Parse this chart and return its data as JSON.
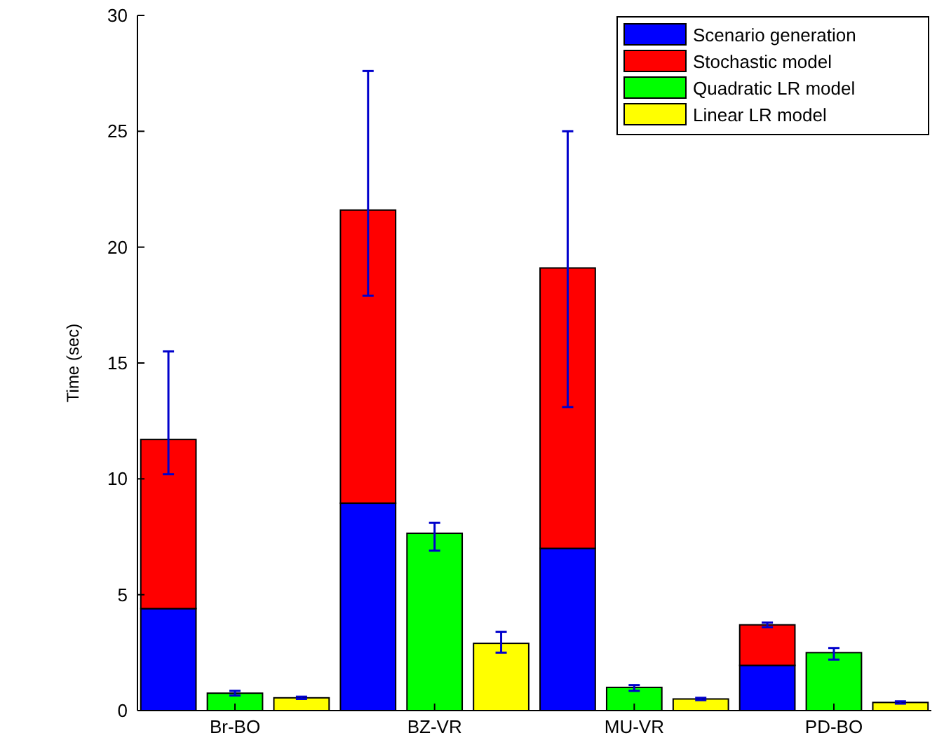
{
  "chart_data": {
    "type": "bar",
    "stacked": true,
    "ylabel": "Time (sec)",
    "categories": [
      null,
      "Br-BO",
      null,
      null,
      "BZ-VR",
      null,
      null,
      "MU-VR",
      null,
      null,
      "PD-BO",
      null
    ],
    "series": [
      {
        "name": "Scenario generation",
        "color": "#0000ff",
        "values": [
          4.4,
          null,
          null,
          8.95,
          null,
          null,
          7.0,
          null,
          null,
          1.95,
          null,
          null
        ]
      },
      {
        "name": "Stochastic model",
        "color": "#ff0000",
        "values": [
          7.3,
          null,
          null,
          12.65,
          null,
          null,
          12.1,
          null,
          null,
          1.75,
          null,
          null
        ],
        "errors": [
          [
            10.2,
            15.5
          ],
          null,
          null,
          [
            17.9,
            27.6
          ],
          null,
          null,
          [
            13.1,
            25.0
          ],
          null,
          null,
          [
            3.6,
            3.8
          ],
          null,
          null
        ]
      },
      {
        "name": "Quadratic LR model",
        "color": "#00ff00",
        "values": [
          null,
          0.75,
          null,
          null,
          7.65,
          null,
          null,
          1.0,
          null,
          null,
          2.5,
          null
        ],
        "errors": [
          null,
          [
            0.65,
            0.85
          ],
          null,
          null,
          [
            6.9,
            8.1
          ],
          null,
          null,
          [
            0.85,
            1.1
          ],
          null,
          null,
          [
            2.2,
            2.7
          ],
          null
        ]
      },
      {
        "name": "Linear LR model",
        "color": "#ffff00",
        "values": [
          null,
          null,
          0.55,
          null,
          null,
          2.9,
          null,
          null,
          0.5,
          null,
          null,
          0.35
        ],
        "errors": [
          null,
          null,
          [
            0.5,
            0.6
          ],
          null,
          null,
          [
            2.5,
            3.4
          ],
          null,
          null,
          [
            0.45,
            0.55
          ],
          null,
          null,
          [
            0.3,
            0.4
          ]
        ]
      }
    ],
    "ylim": [
      0,
      30
    ],
    "yticks": [
      0,
      5,
      10,
      15,
      20,
      25,
      30
    ],
    "legend": "top right",
    "grid": false
  }
}
